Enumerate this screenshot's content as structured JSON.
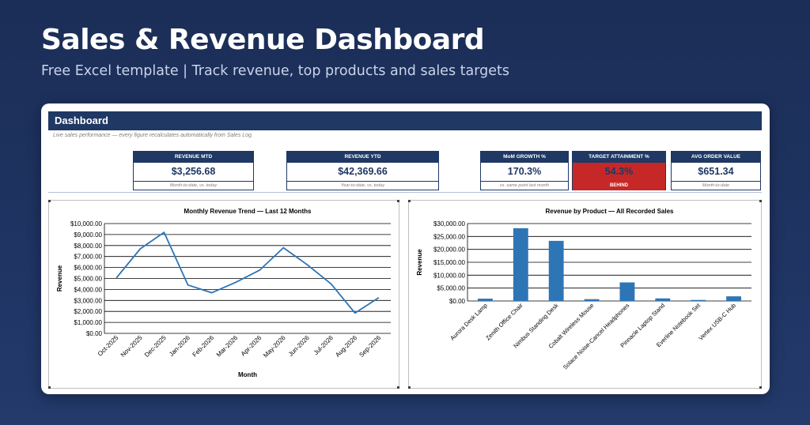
{
  "hero": {
    "title": "Sales & Revenue Dashboard",
    "subtitle": "Free Excel template  |  Track revenue, top products and sales targets"
  },
  "sheet": {
    "header": "Dashboard",
    "note": "Live sales performance — every figure recalculates automatically from Sales Log."
  },
  "kpis": [
    {
      "label": "REVENUE MTD",
      "value": "$3,256.68",
      "foot": "Month-to-date, vs. today"
    },
    {
      "label": "REVENUE YTD",
      "value": "$42,369.66",
      "foot": "Year-to-date, vs. today"
    },
    {
      "label": "MoM GROWTH %",
      "value": "170.3%",
      "foot": "vs. same point last month"
    },
    {
      "label": "TARGET ATTAINMENT %",
      "value": "54.3%",
      "foot": "BEHIND",
      "status": "alert"
    },
    {
      "label": "AVG ORDER VALUE",
      "value": "$651.34",
      "foot": "Month-to-date"
    }
  ],
  "colors": {
    "navy": "#1f3864",
    "series": "#2e75b6",
    "alert": "#c62828"
  },
  "chart_data": [
    {
      "type": "line",
      "title": "Monthly Revenue Trend — Last 12 Months",
      "xlabel": "Month",
      "ylabel": "Revenue",
      "categories": [
        "Oct-2025",
        "Nov-2025",
        "Dec-2025",
        "Jan-2026",
        "Feb-2026",
        "Mar-2026",
        "Apr-2026",
        "May-2026",
        "Jun-2026",
        "Jul-2026",
        "Aug-2026",
        "Sep-2026"
      ],
      "values": [
        5050,
        7700,
        9200,
        4400,
        3700,
        4650,
        5750,
        7800,
        6250,
        4500,
        1850,
        3250
      ],
      "ylim": [
        0,
        10000
      ],
      "yticks": [
        "$0.00",
        "$1,000.00",
        "$2,000.00",
        "$3,000.00",
        "$4,000.00",
        "$5,000.00",
        "$6,000.00",
        "$7,000.00",
        "$8,000.00",
        "$9,000.00",
        "$10,000.00"
      ],
      "grid": true,
      "legend": "none"
    },
    {
      "type": "bar",
      "title": "Revenue by Product — All Recorded Sales",
      "xlabel": "",
      "ylabel": "Revenue",
      "categories": [
        "Aurora Desk Lamp",
        "Zenith Office Chair",
        "Nimbus Standing Desk",
        "Cobalt Wireless Mouse",
        "Solace Noise-Cancel Headphones",
        "Pinnacle Laptop Stand",
        "Everline Notebook Set",
        "Vertex USB-C Hub"
      ],
      "values": [
        900,
        28200,
        23300,
        700,
        7200,
        1000,
        400,
        1800
      ],
      "ylim": [
        0,
        30000
      ],
      "yticks": [
        "$0.00",
        "$5,000.00",
        "$10,000.00",
        "$15,000.00",
        "$20,000.00",
        "$25,000.00",
        "$30,000.00"
      ],
      "grid": true,
      "legend": "none"
    }
  ]
}
